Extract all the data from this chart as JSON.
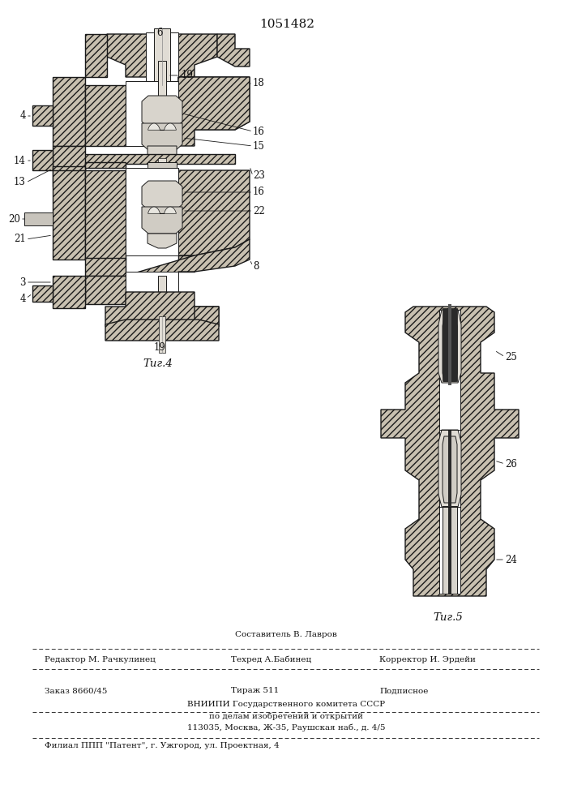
{
  "title_number": "1051482",
  "fig4_label": "Τиг.4",
  "fig5_label": "Τиг.5",
  "bg_color": "#ffffff",
  "footer_line0_center": "Составитель В. Лавров",
  "footer_line1_left": "Редактор М. Рачкулинец",
  "footer_line1_center": "Техред А.Бабинец",
  "footer_line1_right": "Корректор И. Эрдейи",
  "footer_line2_left": "Заказ 8660/45",
  "footer_line2_center": "Тираж 511",
  "footer_line2_right": "Подписное",
  "footer_line3": "ВНИИПИ Государственного комитета СССР",
  "footer_line4": "по делам изобретений и открытий",
  "footer_line5": "113035, Москва, Ж-35, Раушская наб., д. 4/5",
  "footer_line6": "Филиал ППП \"Патент\", г. Ужгород, ул. Проектная, 4"
}
